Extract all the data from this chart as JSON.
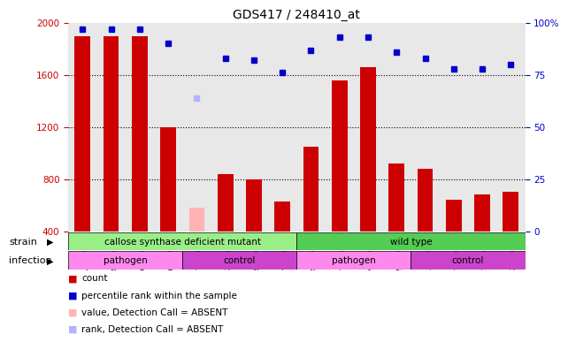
{
  "title": "GDS417 / 248410_at",
  "categories": [
    "GSM6577",
    "GSM6578",
    "GSM6579",
    "GSM6580",
    "GSM6581",
    "GSM6582",
    "GSM6583",
    "GSM6584",
    "GSM6573",
    "GSM6574",
    "GSM6575",
    "GSM6576",
    "GSM6227",
    "GSM6544",
    "GSM6571",
    "GSM6572"
  ],
  "bar_values": [
    1900,
    1900,
    1900,
    1200,
    580,
    840,
    800,
    630,
    1050,
    1560,
    1660,
    920,
    880,
    640,
    680,
    700
  ],
  "bar_absent": [
    false,
    false,
    false,
    false,
    true,
    false,
    false,
    false,
    false,
    false,
    false,
    false,
    false,
    false,
    false,
    false
  ],
  "dot_values": [
    97,
    97,
    97,
    90,
    64,
    83,
    82,
    76,
    87,
    93,
    93,
    86,
    83,
    78,
    78,
    80
  ],
  "dot_absent": [
    false,
    false,
    false,
    false,
    true,
    false,
    false,
    false,
    false,
    false,
    false,
    false,
    false,
    false,
    false,
    false
  ],
  "ylim_left": [
    400,
    2000
  ],
  "ylim_right": [
    0,
    100
  ],
  "yticks_left": [
    400,
    800,
    1200,
    1600,
    2000
  ],
  "yticks_right": [
    0,
    25,
    50,
    75,
    100
  ],
  "bar_color": "#cc0000",
  "bar_absent_color": "#ffb3b3",
  "dot_color": "#0000cc",
  "dot_absent_color": "#b3b3ff",
  "grid_color": "#000000",
  "bg_color": "#e8e8e8",
  "strain_color_left": "#99ee88",
  "strain_color_right": "#66dd55",
  "infection_pathogen_color": "#ff88ee",
  "infection_control_color": "#cc44cc",
  "ylabel_left_color": "#cc0000",
  "ylabel_right_color": "#0000cc",
  "strain_boxes": [
    {
      "text": "callose synthase deficient mutant",
      "start": 0,
      "end": 8
    },
    {
      "text": "wild type",
      "start": 8,
      "end": 16
    }
  ],
  "infection_boxes": [
    {
      "text": "pathogen",
      "start": 0,
      "end": 4,
      "type": "pathogen"
    },
    {
      "text": "control",
      "start": 4,
      "end": 8,
      "type": "control"
    },
    {
      "text": "pathogen",
      "start": 8,
      "end": 12,
      "type": "pathogen"
    },
    {
      "text": "control",
      "start": 12,
      "end": 16,
      "type": "control"
    }
  ],
  "legend_items": [
    {
      "label": "count",
      "color": "#cc0000"
    },
    {
      "label": "percentile rank within the sample",
      "color": "#0000cc"
    },
    {
      "label": "value, Detection Call = ABSENT",
      "color": "#ffb3b3"
    },
    {
      "label": "rank, Detection Call = ABSENT",
      "color": "#b3b3ff"
    }
  ]
}
